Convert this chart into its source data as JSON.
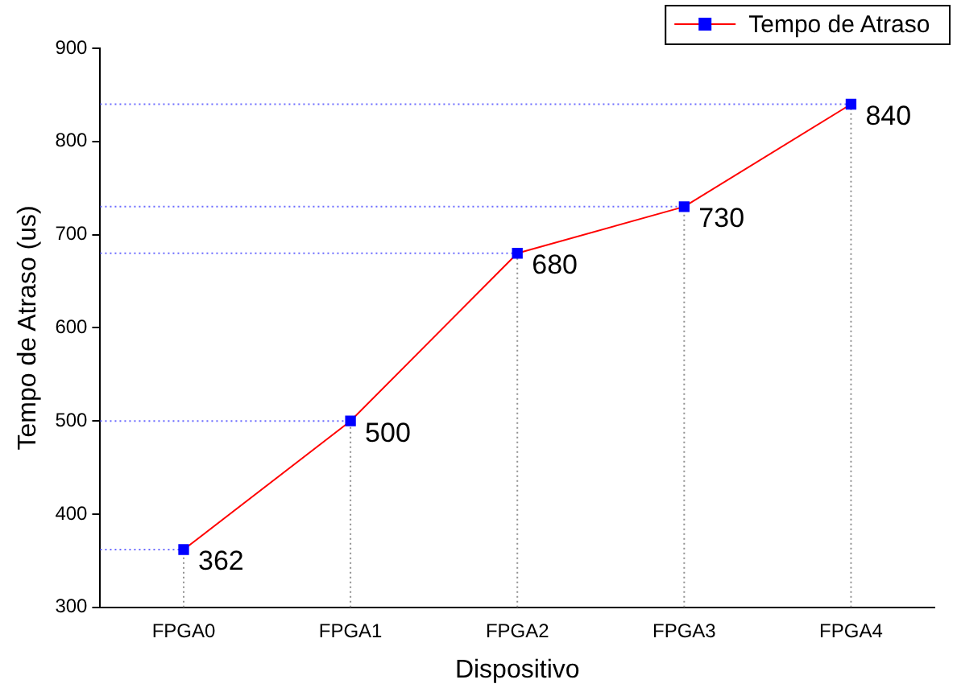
{
  "chart_data": {
    "type": "line",
    "xlabel": "Dispositivo",
    "ylabel": "Tempo de Atraso (us)",
    "categories": [
      "FPGA0",
      "FPGA1",
      "FPGA2",
      "FPGA3",
      "FPGA4"
    ],
    "series": [
      {
        "name": "Tempo de Atraso",
        "color": "#ff0000",
        "colors": [
          "#0000ff",
          "#0000ff",
          "#0000ff",
          "#0000ff",
          "#0000ff"
        ],
        "values": [
          362,
          500,
          680,
          730,
          840
        ]
      }
    ],
    "ylim": [
      300,
      900
    ],
    "yticks": [
      300,
      400,
      500,
      600,
      700,
      800,
      900
    ],
    "grid": false,
    "legend": "top right",
    "marker": "square",
    "line_style": "solid",
    "data_labels": true,
    "ref_lines": [
      {
        "axis": "y",
        "value": 362,
        "color": "#6a6aff",
        "line_style": "dotted"
      },
      {
        "axis": "y",
        "value": 500,
        "color": "#6a6aff",
        "line_style": "dotted"
      },
      {
        "axis": "y",
        "value": 680,
        "color": "#6a6aff",
        "line_style": "dotted"
      },
      {
        "axis": "y",
        "value": 730,
        "color": "#6a6aff",
        "line_style": "dotted"
      },
      {
        "axis": "y",
        "value": 840,
        "color": "#6a6aff",
        "line_style": "dotted"
      },
      {
        "axis": "x",
        "value": "FPGA0",
        "color": "#909090",
        "line_style": "dotted"
      },
      {
        "axis": "x",
        "value": "FPGA1",
        "color": "#909090",
        "line_style": "dotted"
      },
      {
        "axis": "x",
        "value": "FPGA2",
        "color": "#909090",
        "line_style": "dotted"
      },
      {
        "axis": "x",
        "value": "FPGA3",
        "color": "#909090",
        "line_style": "dotted"
      },
      {
        "axis": "x",
        "value": "FPGA4",
        "color": "#909090",
        "line_style": "dotted"
      }
    ]
  }
}
